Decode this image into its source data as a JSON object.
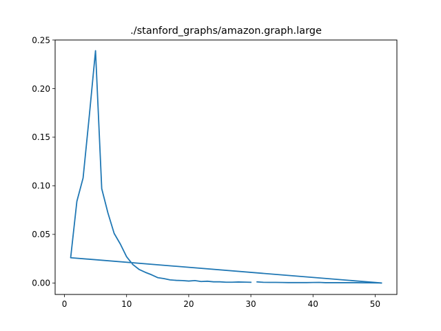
{
  "chart_data": {
    "type": "line",
    "title": "./stanford_graphs/amazon.graph.large",
    "xlabel": "",
    "ylabel": "",
    "xlim": [
      -1.5,
      53.5
    ],
    "ylim": [
      -0.0118,
      0.25
    ],
    "x_ticks": [
      0,
      10,
      20,
      30,
      40,
      50
    ],
    "x_tick_labels": [
      "0",
      "10",
      "20",
      "30",
      "40",
      "50"
    ],
    "y_ticks": [
      0.0,
      0.05,
      0.1,
      0.15,
      0.2,
      0.25
    ],
    "y_tick_labels": [
      "0.00",
      "0.05",
      "0.10",
      "0.15",
      "0.20",
      "0.25"
    ],
    "grid": false,
    "series_color": "#1f77b4",
    "series": [
      {
        "segments": [
          {
            "x": [
              51,
              1,
              2,
              3,
              4,
              5,
              6,
              7,
              8,
              9,
              10,
              11,
              12,
              13,
              14,
              15,
              16,
              17,
              18,
              19,
              20,
              21,
              22,
              23,
              24,
              25,
              26,
              27,
              28,
              29,
              30
            ],
            "y": [
              0.0,
              0.026,
              0.084,
              0.108,
              0.172,
              0.239,
              0.097,
              0.072,
              0.051,
              0.04,
              0.027,
              0.019,
              0.014,
              0.011,
              0.0085,
              0.0055,
              0.0045,
              0.0032,
              0.0027,
              0.0025,
              0.002,
              0.0025,
              0.0015,
              0.0018,
              0.0012,
              0.0012,
              0.0008,
              0.0008,
              0.001,
              0.0009,
              0.0007
            ]
          },
          {
            "x": [
              31,
              32,
              33,
              34,
              35,
              36,
              37,
              38,
              39,
              40,
              41,
              42,
              43,
              44,
              45,
              46,
              47,
              48,
              49,
              50,
              51
            ],
            "y": [
              0.0011,
              0.0007,
              0.0006,
              0.0006,
              0.0005,
              0.0004,
              0.0004,
              0.0004,
              0.0004,
              0.0005,
              0.0006,
              0.0003,
              0.0003,
              0.0003,
              0.0003,
              0.0003,
              0.0003,
              0.0002,
              0.0002,
              0.0001,
              0.0
            ]
          }
        ]
      }
    ]
  }
}
